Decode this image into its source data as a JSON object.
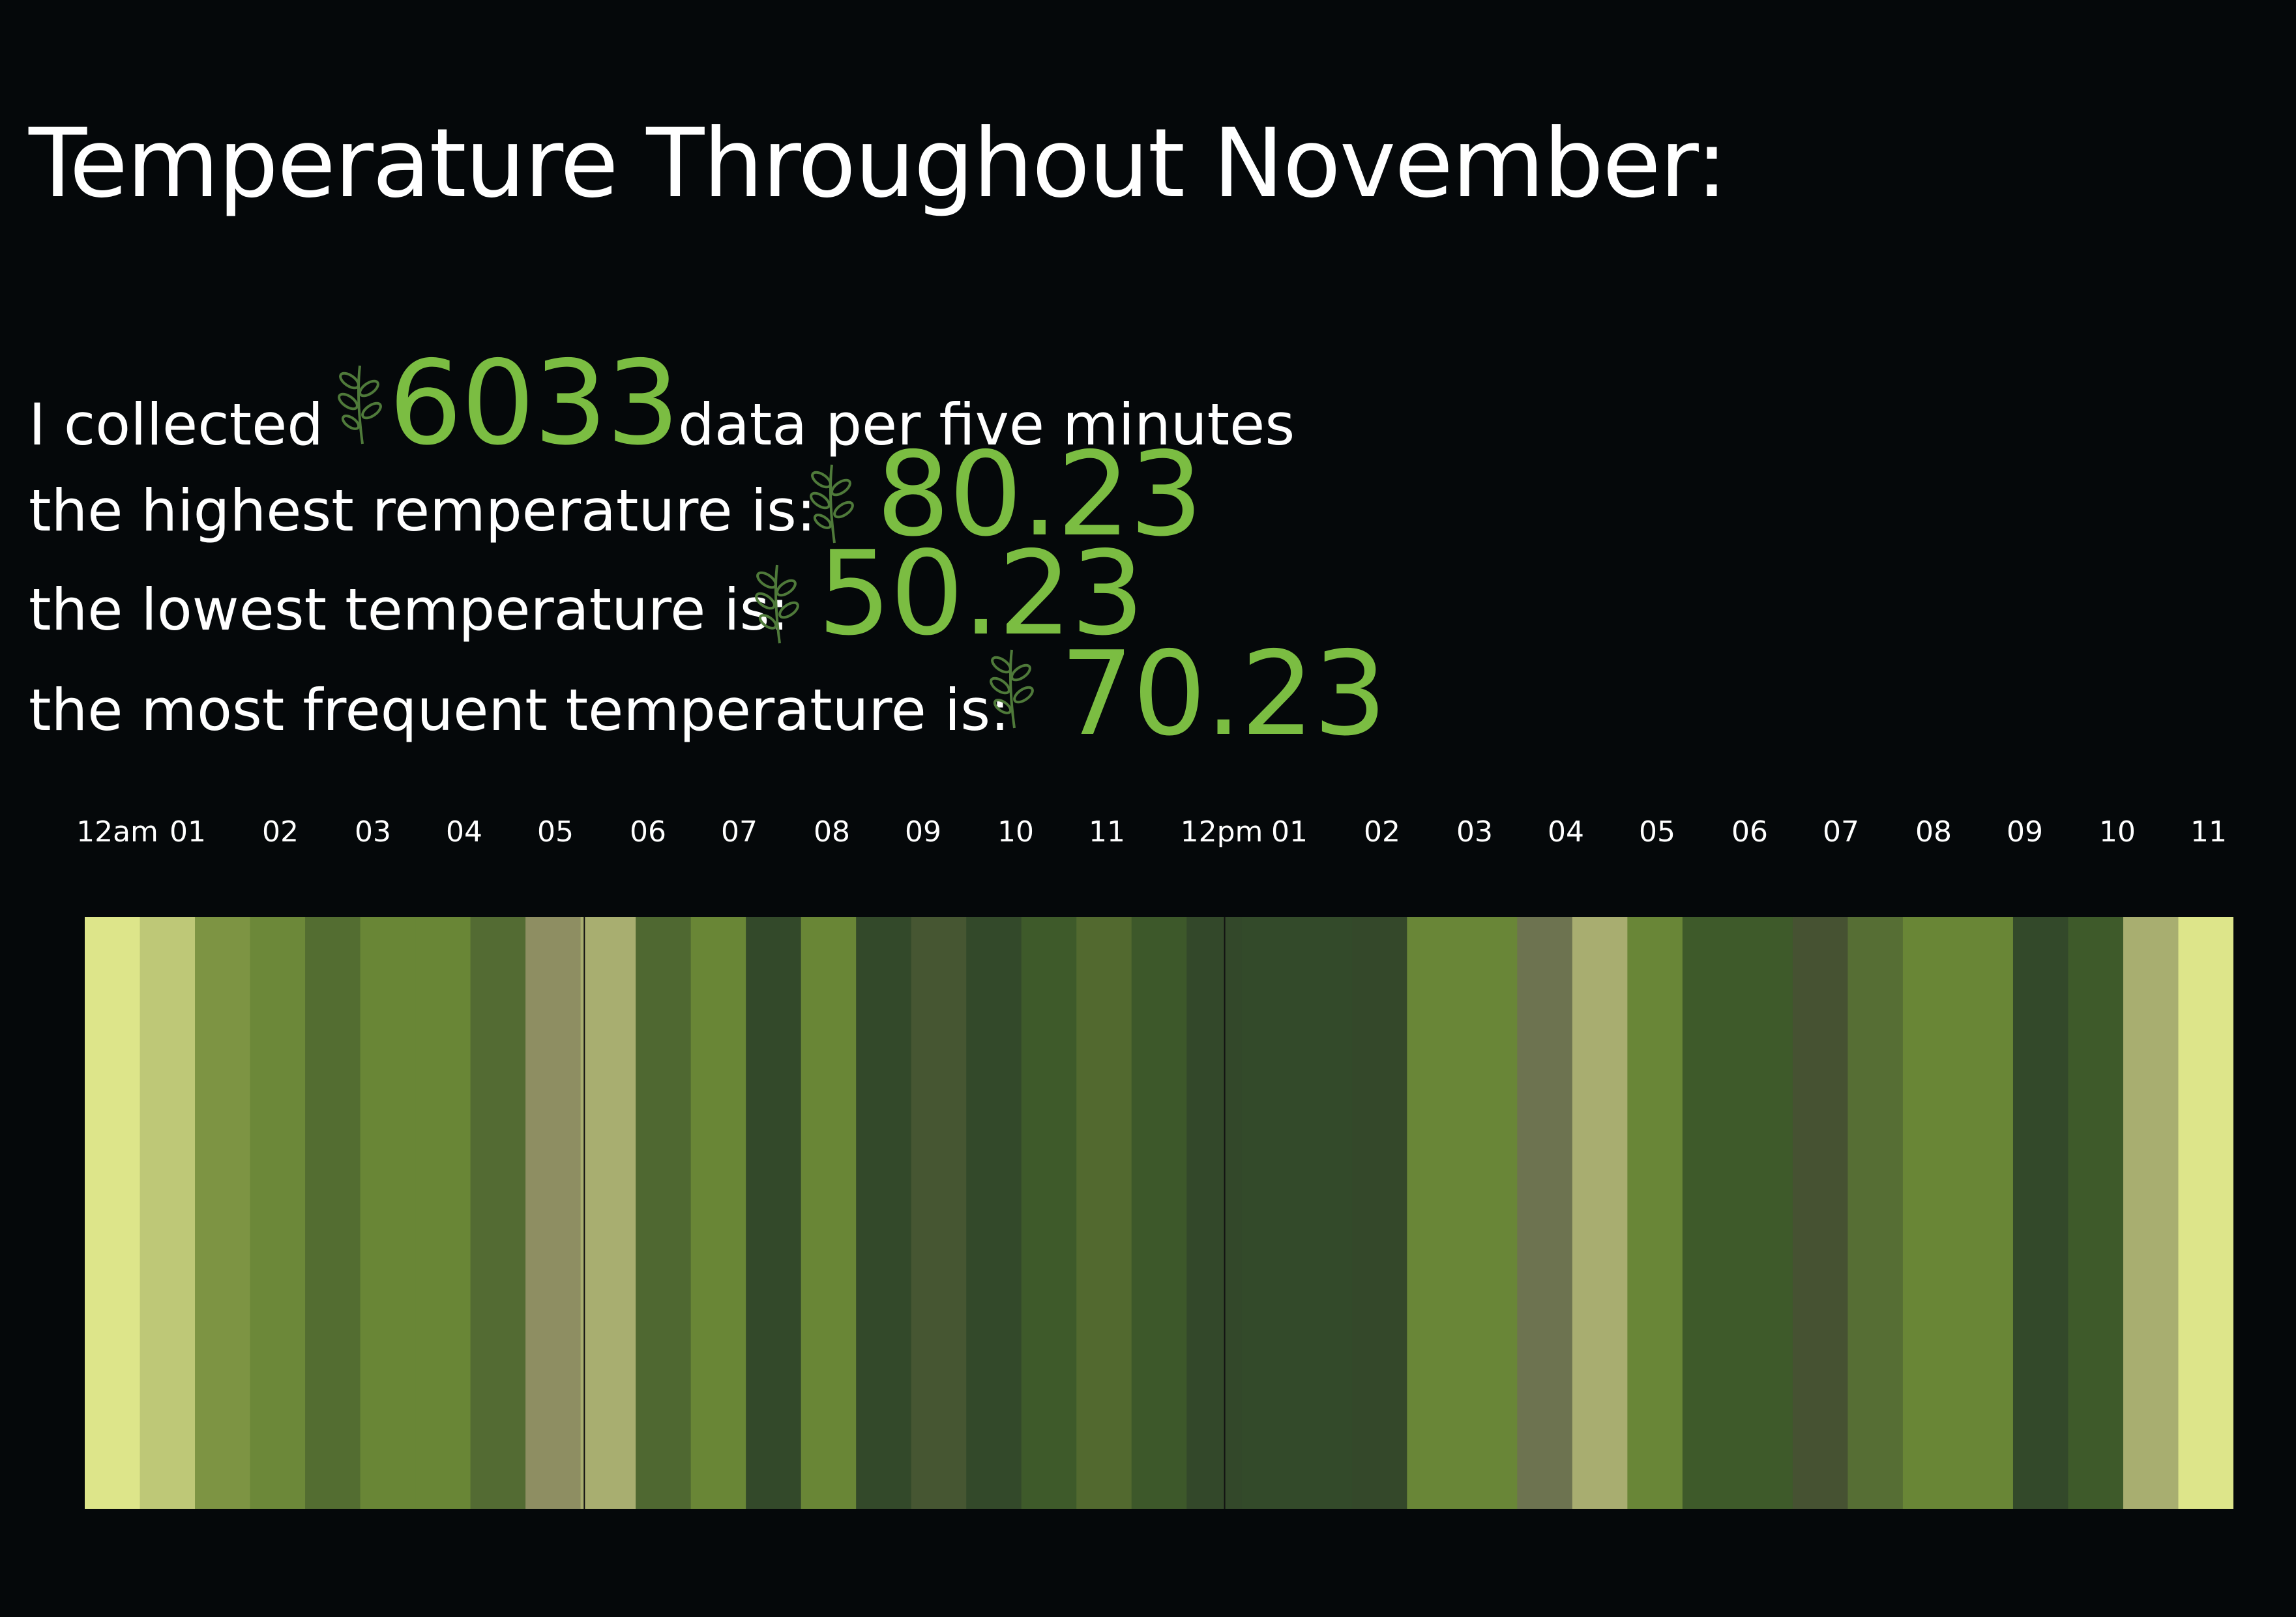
{
  "title": "Temperature Throughout November:",
  "stats": {
    "collected_prefix": "I collected",
    "collected_value": "6033",
    "collected_suffix": "data per five minutes",
    "highest_label": "the highest remperature is:",
    "highest_value": "80.23",
    "lowest_label": "the lowest temperature is:",
    "lowest_value": "50.23",
    "frequent_label": "the most frequent temperature is:",
    "frequent_value": "70.23"
  },
  "colors": {
    "background": "#05080a",
    "accent": "#7bbd42",
    "leaf": "#4f7a3a"
  },
  "chart_data": {
    "type": "heatmap",
    "title": "",
    "hour_labels": [
      "12am",
      "01",
      "02",
      "03",
      "04",
      "05",
      "06",
      "07",
      "08",
      "09",
      "10",
      "11",
      "12pm",
      "01",
      "02",
      "03",
      "04",
      "05",
      "06",
      "07",
      "08",
      "09",
      "10",
      "11"
    ],
    "bands": [
      {
        "hour": 0,
        "color": "#dde58a"
      },
      {
        "hour": 1,
        "color": "#bec877"
      },
      {
        "hour": 2,
        "color": "#7d9443"
      },
      {
        "hour": 3,
        "color": "#6c8839"
      },
      {
        "hour": 4,
        "color": "#536d31"
      },
      {
        "hour": 5,
        "color": "#698636"
      },
      {
        "hour": 6,
        "color": "#698636"
      },
      {
        "hour": 7,
        "color": "#536b33"
      },
      {
        "hour": 8,
        "color": "#8e8e62"
      },
      {
        "hour": 9,
        "color": "#a8ae70"
      },
      {
        "hour": 10,
        "color": "#4f6831"
      },
      {
        "hour": 11,
        "color": "#698636"
      },
      {
        "hour": 12,
        "color": "#33492a"
      },
      {
        "hour": 13,
        "color": "#698636"
      },
      {
        "hour": 14,
        "color": "#33492a"
      },
      {
        "hour": 15,
        "color": "#465632"
      },
      {
        "hour": 16,
        "color": "#33492a"
      },
      {
        "hour": 17,
        "color": "#3e5a2a"
      },
      {
        "hour": 18,
        "color": "#52692f"
      },
      {
        "hour": 19,
        "color": "#3d582a"
      },
      {
        "hour": 20,
        "color": "#33482a"
      },
      {
        "hour": 21,
        "color": "#334a2a"
      },
      {
        "hour": 22,
        "color": "#334a2a"
      },
      {
        "hour": 23,
        "color": "#34482a"
      },
      {
        "hour": 24,
        "color": "#698637"
      },
      {
        "hour": 25,
        "color": "#698637"
      },
      {
        "hour": 26,
        "color": "#6d7350"
      },
      {
        "hour": 27,
        "color": "#a8ad70"
      },
      {
        "hour": 28,
        "color": "#698637"
      },
      {
        "hour": 29,
        "color": "#3e5a2a"
      },
      {
        "hour": 30,
        "color": "#3e5a2a"
      },
      {
        "hour": 31,
        "color": "#465232"
      },
      {
        "hour": 32,
        "color": "#566e34"
      },
      {
        "hour": 33,
        "color": "#698636"
      },
      {
        "hour": 34,
        "color": "#698636"
      },
      {
        "hour": 35,
        "color": "#33492a"
      },
      {
        "hour": 36,
        "color": "#3e5a2a"
      },
      {
        "hour": 37,
        "color": "#a8ae70"
      },
      {
        "hour": 38,
        "color": "#dde58a"
      }
    ]
  }
}
